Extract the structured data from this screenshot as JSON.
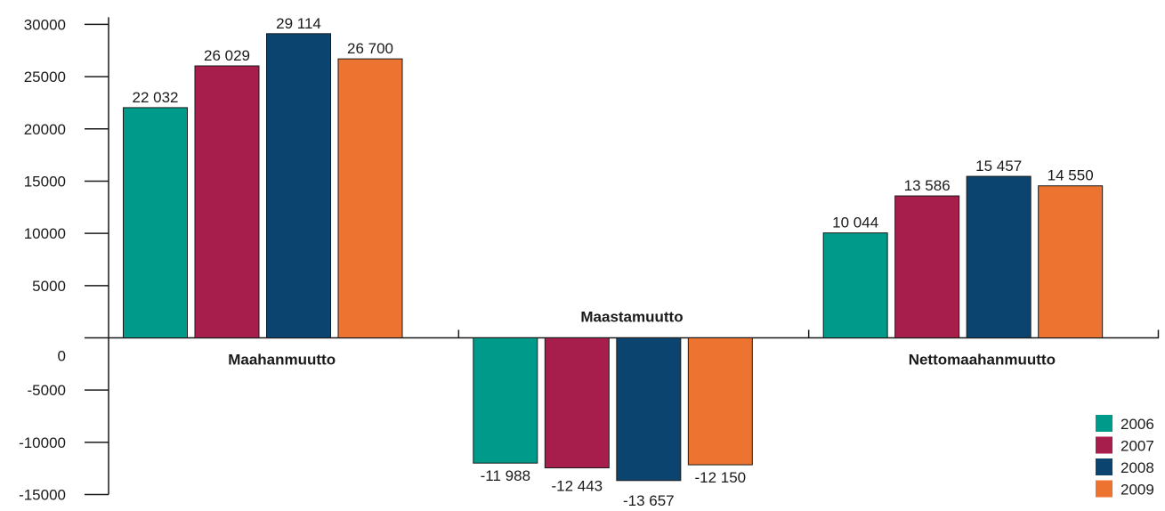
{
  "chart_data": {
    "type": "bar",
    "categories": [
      "Maahanmuutto",
      "Maastamuutto",
      "Nettomaahanmuutto"
    ],
    "series": [
      {
        "name": "2006",
        "color": "#009a8a",
        "values": [
          22032,
          -11988,
          10044
        ],
        "labels": [
          "22 032",
          "-11 988",
          "10 044"
        ]
      },
      {
        "name": "2007",
        "color": "#a71d4c",
        "values": [
          26029,
          -12443,
          13586
        ],
        "labels": [
          "26 029",
          "-12 443",
          "13 586"
        ]
      },
      {
        "name": "2008",
        "color": "#0c4470",
        "values": [
          29114,
          -13657,
          15457
        ],
        "labels": [
          "29 114",
          "-13 657",
          "15 457"
        ]
      },
      {
        "name": "2009",
        "color": "#ec7330",
        "values": [
          26700,
          -12150,
          14550
        ],
        "labels": [
          "26 700",
          "-12 150",
          "14 550"
        ]
      }
    ],
    "y_ticks": [
      30000,
      25000,
      20000,
      15000,
      10000,
      5000,
      0,
      -5000,
      -10000,
      -15000
    ],
    "y_tick_labels": [
      "30000",
      "25000",
      "20000",
      "15000",
      "10000",
      "5000",
      "0",
      "-5000",
      "-10000",
      "-15000"
    ],
    "ylim": [
      -15000,
      30000
    ],
    "title": "",
    "xlabel": "",
    "ylabel": "",
    "legend_position": "bottom-right",
    "grid": false
  }
}
